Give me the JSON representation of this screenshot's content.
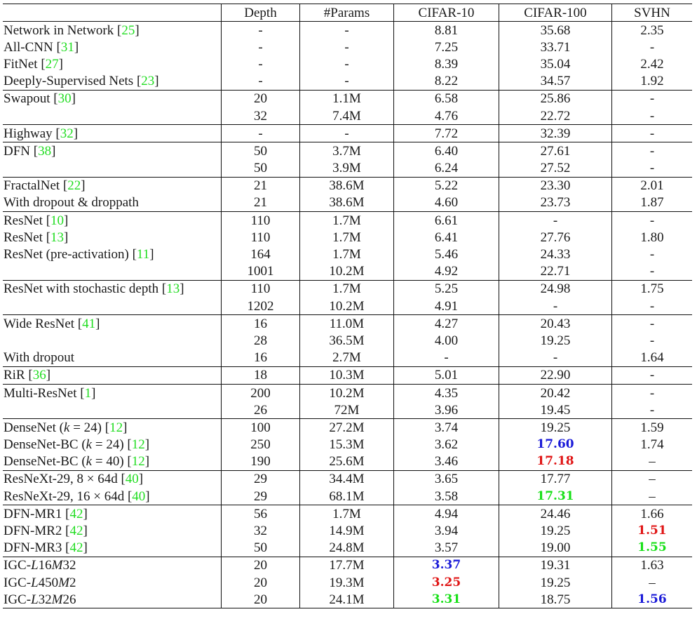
{
  "colors": {
    "ref": "#22dd22",
    "blue": "#1a1ad8",
    "red": "#e01414",
    "green": "#18e018"
  },
  "headers": [
    "",
    "Depth",
    "#Params",
    "CIFAR-10",
    "CIFAR-100",
    "SVHN"
  ],
  "groups": [
    [
      {
        "name": [
          {
            "t": "Network in Network "
          }
        ],
        "ref": "25",
        "cells": [
          "-",
          "-",
          "8.81",
          "35.68",
          "2.35"
        ]
      },
      {
        "name": [
          {
            "t": "All-CNN "
          }
        ],
        "ref": "31",
        "cells": [
          "-",
          "-",
          "7.25",
          "33.71",
          "-"
        ]
      },
      {
        "name": [
          {
            "t": "FitNet "
          }
        ],
        "ref": "27",
        "cells": [
          "-",
          "-",
          "8.39",
          "35.04",
          "2.42"
        ]
      },
      {
        "name": [
          {
            "t": "Deeply-Supervised Nets "
          }
        ],
        "ref": "23",
        "cells": [
          "-",
          "-",
          "8.22",
          "34.57",
          "1.92"
        ]
      }
    ],
    [
      {
        "name": [
          {
            "t": "Swapout "
          }
        ],
        "ref": "30",
        "cells": [
          "20",
          "1.1M",
          "6.58",
          "25.86",
          "-"
        ]
      },
      {
        "name": [],
        "cells": [
          "32",
          "7.4M",
          "4.76",
          "22.72",
          "-"
        ]
      }
    ],
    [
      {
        "name": [
          {
            "t": "Highway "
          }
        ],
        "ref": "32",
        "cells": [
          "-",
          "-",
          "7.72",
          "32.39",
          "-"
        ]
      }
    ],
    [
      {
        "name": [
          {
            "t": "DFN "
          }
        ],
        "ref": "38",
        "cells": [
          "50",
          "3.7M",
          "6.40",
          "27.61",
          "-"
        ]
      },
      {
        "name": [],
        "cells": [
          "50",
          "3.9M",
          "6.24",
          "27.52",
          "-"
        ]
      }
    ],
    [
      {
        "name": [
          {
            "t": "FractalNet "
          }
        ],
        "ref": "22",
        "cells": [
          "21",
          "38.6M",
          "5.22",
          "23.30",
          "2.01"
        ]
      },
      {
        "name": [
          {
            "t": "With dropout & droppath"
          }
        ],
        "cells": [
          "21",
          "38.6M",
          "4.60",
          "23.73",
          "1.87"
        ]
      }
    ],
    [
      {
        "name": [
          {
            "t": "ResNet "
          }
        ],
        "ref": "10",
        "cells": [
          "110",
          "1.7M",
          "6.61",
          "-",
          "-"
        ]
      },
      {
        "name": [
          {
            "t": "ResNet "
          }
        ],
        "ref": "13",
        "cells": [
          "110",
          "1.7M",
          "6.41",
          "27.76",
          "1.80"
        ]
      },
      {
        "name": [
          {
            "t": "ResNet (pre-activation) "
          }
        ],
        "ref": "11",
        "cells": [
          "164",
          "1.7M",
          "5.46",
          "24.33",
          "-"
        ]
      },
      {
        "name": [],
        "cells": [
          "1001",
          "10.2M",
          "4.92",
          "22.71",
          "-"
        ]
      }
    ],
    [
      {
        "name": [
          {
            "t": "ResNet with stochastic depth "
          }
        ],
        "ref": "13",
        "cells": [
          "110",
          "1.7M",
          "5.25",
          "24.98",
          "1.75"
        ]
      },
      {
        "name": [],
        "cells": [
          "1202",
          "10.2M",
          "4.91",
          "-",
          "-"
        ]
      }
    ],
    [
      {
        "name": [
          {
            "t": "Wide ResNet "
          }
        ],
        "ref": "41",
        "cells": [
          "16",
          "11.0M",
          "4.27",
          "20.43",
          "-"
        ]
      },
      {
        "name": [],
        "cells": [
          "28",
          "36.5M",
          "4.00",
          "19.25",
          "-"
        ]
      },
      {
        "name": [
          {
            "t": "With dropout"
          }
        ],
        "cells": [
          "16",
          "2.7M",
          "-",
          "-",
          "1.64"
        ]
      }
    ],
    [
      {
        "name": [
          {
            "t": "RiR "
          }
        ],
        "ref": "36",
        "cells": [
          "18",
          "10.3M",
          "5.01",
          "22.90",
          "-"
        ]
      }
    ],
    [
      {
        "name": [
          {
            "t": "Multi-ResNet "
          }
        ],
        "ref": "1",
        "cells": [
          "200",
          "10.2M",
          "4.35",
          "20.42",
          "-"
        ]
      },
      {
        "name": [],
        "cells": [
          "26",
          "72M",
          "3.96",
          "19.45",
          "-"
        ]
      }
    ],
    [
      {
        "name": [
          {
            "t": "DenseNet ("
          },
          {
            "t": "k",
            "i": true
          },
          {
            "t": " = 24) "
          }
        ],
        "ref": "12",
        "cells": [
          "100",
          "27.2M",
          "3.74",
          "19.25",
          "1.59"
        ]
      },
      {
        "name": [
          {
            "t": "DenseNet-BC ("
          },
          {
            "t": "k",
            "i": true
          },
          {
            "t": " = 24) "
          }
        ],
        "ref": "12",
        "cells": [
          "250",
          "15.3M",
          "3.62",
          "17.60",
          "1.74"
        ],
        "hl": {
          "3": "blue"
        }
      },
      {
        "name": [
          {
            "t": "DenseNet-BC ("
          },
          {
            "t": "k",
            "i": true
          },
          {
            "t": " = 40) "
          }
        ],
        "ref": "12",
        "cells": [
          "190",
          "25.6M",
          "3.46",
          "17.18",
          "–"
        ],
        "hl": {
          "3": "red"
        }
      }
    ],
    [
      {
        "name": [
          {
            "t": "ResNeXt-29, 8 × 64d "
          }
        ],
        "ref": "40",
        "cells": [
          "29",
          "34.4M",
          "3.65",
          "17.77",
          "–"
        ]
      },
      {
        "name": [
          {
            "t": "ResNeXt-29, 16 × 64d "
          }
        ],
        "ref": "40",
        "cells": [
          "29",
          "68.1M",
          "3.58",
          "17.31",
          "–"
        ],
        "hl": {
          "3": "green"
        }
      }
    ],
    [
      {
        "name": [
          {
            "t": "DFN-MR1 "
          }
        ],
        "ref": "42",
        "cells": [
          "56",
          "1.7M",
          "4.94",
          "24.46",
          "1.66"
        ]
      },
      {
        "name": [
          {
            "t": "DFN-MR2 "
          }
        ],
        "ref": "42",
        "cells": [
          "32",
          "14.9M",
          "3.94",
          "19.25",
          "1.51"
        ],
        "hl": {
          "4": "red"
        }
      },
      {
        "name": [
          {
            "t": "DFN-MR3 "
          }
        ],
        "ref": "42",
        "cells": [
          "50",
          "24.8M",
          "3.57",
          "19.00",
          "1.55"
        ],
        "hl": {
          "4": "green"
        }
      }
    ],
    [
      {
        "name": [
          {
            "t": "IGC-"
          },
          {
            "t": "L",
            "i": true
          },
          {
            "t": "16"
          },
          {
            "t": "M",
            "i": true
          },
          {
            "t": "32"
          }
        ],
        "cells": [
          "20",
          "17.7M",
          "3.37",
          "19.31",
          "1.63"
        ],
        "hl": {
          "2": "blue"
        }
      },
      {
        "name": [
          {
            "t": "IGC-"
          },
          {
            "t": "L",
            "i": true
          },
          {
            "t": "450"
          },
          {
            "t": "M",
            "i": true
          },
          {
            "t": "2"
          }
        ],
        "cells": [
          "20",
          "19.3M",
          "3.25",
          "19.25",
          "–"
        ],
        "hl": {
          "2": "red"
        }
      },
      {
        "name": [
          {
            "t": "IGC-"
          },
          {
            "t": "L",
            "i": true
          },
          {
            "t": "32"
          },
          {
            "t": "M",
            "i": true
          },
          {
            "t": "26"
          }
        ],
        "cells": [
          "20",
          "24.1M",
          "3.31",
          "18.75",
          "1.56"
        ],
        "hl": {
          "2": "green",
          "4": "blue"
        }
      }
    ]
  ]
}
